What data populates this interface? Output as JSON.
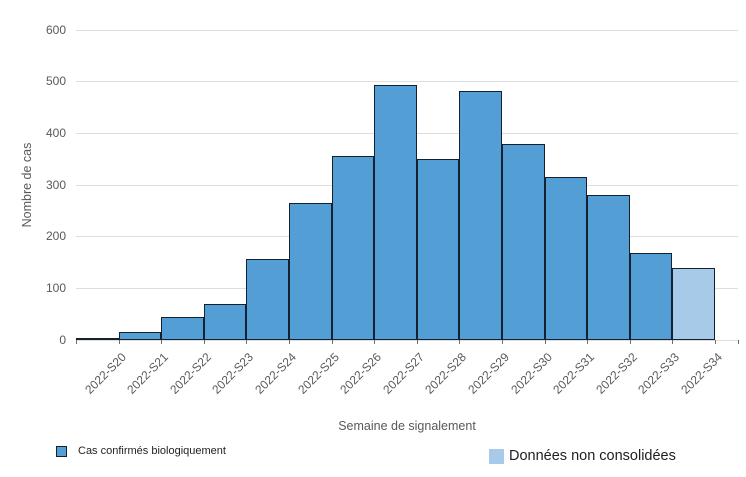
{
  "chart_data": {
    "type": "bar",
    "title": "",
    "xlabel": "Semaine de signalement",
    "ylabel": "Nombre de cas",
    "ylim": [
      0,
      600
    ],
    "ytick_step": 100,
    "grid": "horizontal",
    "legend_position": "bottom",
    "categories": [
      "2022-S20",
      "2022-S21",
      "2022-S22",
      "2022-S23",
      "2022-S24",
      "2022-S25",
      "2022-S26",
      "2022-S27",
      "2022-S28",
      "2022-S29",
      "2022-S30",
      "2022-S31",
      "2022-S32",
      "2022-S33",
      "2022-S34"
    ],
    "series_names": [
      "Cas confirmés biologiquement",
      "Données non consolidées"
    ],
    "bars": [
      {
        "category": "2022-S20",
        "value": 4,
        "series": "Cas confirmés biologiquement"
      },
      {
        "category": "2022-S21",
        "value": 15,
        "series": "Cas confirmés biologiquement"
      },
      {
        "category": "2022-S22",
        "value": 45,
        "series": "Cas confirmés biologiquement"
      },
      {
        "category": "2022-S23",
        "value": 70,
        "series": "Cas confirmés biologiquement"
      },
      {
        "category": "2022-S24",
        "value": 157,
        "series": "Cas confirmés biologiquement"
      },
      {
        "category": "2022-S25",
        "value": 265,
        "series": "Cas confirmés biologiquement"
      },
      {
        "category": "2022-S26",
        "value": 356,
        "series": "Cas confirmés biologiquement"
      },
      {
        "category": "2022-S27",
        "value": 494,
        "series": "Cas confirmés biologiquement"
      },
      {
        "category": "2022-S28",
        "value": 350,
        "series": "Cas confirmés biologiquement"
      },
      {
        "category": "2022-S29",
        "value": 482,
        "series": "Cas confirmés biologiquement"
      },
      {
        "category": "2022-S30",
        "value": 380,
        "series": "Cas confirmés biologiquement"
      },
      {
        "category": "2022-S31",
        "value": 316,
        "series": "Cas confirmés biologiquement"
      },
      {
        "category": "2022-S32",
        "value": 280,
        "series": "Cas confirmés biologiquement"
      },
      {
        "category": "2022-S33",
        "value": 169,
        "series": "Cas confirmés biologiquement"
      },
      {
        "category": "2022-S34",
        "value": 139,
        "series": "Données non consolidées"
      }
    ],
    "colors": {
      "confirmed_fill": "#539FD5",
      "unconsolidated_fill": "#A8CAE9",
      "bar_border": "#13222E",
      "gridline": "#DEDEDE",
      "axis_text": "#595959",
      "legend_text": "#1F1F1F",
      "tick_mark": "#6E6E6E",
      "background": "#FFFFFF"
    }
  },
  "legend": {
    "items": [
      {
        "label": "Cas confirmés biologiquement",
        "swatch": "confirmed"
      },
      {
        "label": "Données non consolidées",
        "swatch": "unconsolidated"
      }
    ]
  }
}
